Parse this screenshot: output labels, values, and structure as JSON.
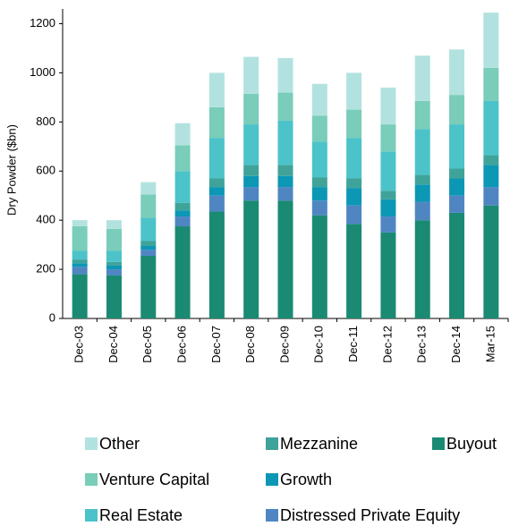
{
  "chart_data": {
    "type": "stacked_bar",
    "y_label": "Dry Powder ($bn)",
    "categories": [
      "Dec-03",
      "Dec-04",
      "Dec-05",
      "Dec-06",
      "Dec-07",
      "Dec-08",
      "Dec-09",
      "Dec-10",
      "Dec-11",
      "Dec-12",
      "Dec-13",
      "Dec-14",
      "Mar-15"
    ],
    "series": [
      {
        "name": "Buyout",
        "color": "#1a8a73",
        "values": [
          180,
          175,
          255,
          375,
          435,
          480,
          480,
          420,
          385,
          350,
          400,
          430,
          460
        ]
      },
      {
        "name": "Distressed Private Equity",
        "color": "#4f86c2",
        "values": [
          30,
          25,
          25,
          40,
          65,
          55,
          55,
          60,
          75,
          65,
          75,
          70,
          75
        ]
      },
      {
        "name": "Growth",
        "color": "#0c97b5",
        "values": [
          15,
          15,
          15,
          25,
          35,
          45,
          45,
          55,
          70,
          70,
          70,
          70,
          90
        ]
      },
      {
        "name": "Mezzanine",
        "color": "#3fa39a",
        "values": [
          15,
          15,
          20,
          30,
          35,
          45,
          45,
          40,
          40,
          35,
          40,
          40,
          40
        ]
      },
      {
        "name": "Real Estate",
        "color": "#4cc3c9",
        "values": [
          35,
          45,
          95,
          130,
          165,
          165,
          180,
          145,
          165,
          160,
          185,
          180,
          220
        ]
      },
      {
        "name": "Venture Capital",
        "color": "#79cdb9",
        "values": [
          100,
          90,
          95,
          105,
          125,
          125,
          115,
          105,
          115,
          110,
          115,
          120,
          135
        ]
      },
      {
        "name": "Other",
        "color": "#b2e2df",
        "values": [
          25,
          35,
          50,
          90,
          140,
          150,
          140,
          130,
          150,
          150,
          185,
          185,
          225
        ]
      }
    ],
    "ylim": [
      0,
      1260
    ],
    "yticks": [
      0,
      200,
      400,
      600,
      800,
      1000,
      1200
    ]
  }
}
